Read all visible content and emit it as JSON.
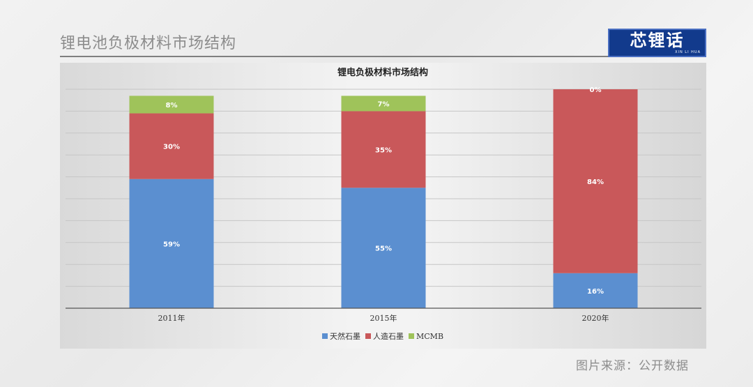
{
  "slide": {
    "title": "锂电池负极材料市场结构",
    "logo_text": "芯锂话",
    "logo_sub": "XIN LI HUA",
    "source": "图片来源：公开数据"
  },
  "colors": {
    "series": [
      "#5b8fd0",
      "#c9585a",
      "#9fc35a"
    ],
    "logo_bg": "#123a8c"
  },
  "chart_data": {
    "type": "bar",
    "stacked": true,
    "title": "锂电负极材料市场结构",
    "categories": [
      "2011年",
      "2015年",
      "2020年"
    ],
    "series": [
      {
        "name": "天然石墨",
        "values": [
          59,
          55,
          16
        ],
        "labels": [
          "59%",
          "55%",
          "16%"
        ]
      },
      {
        "name": "人造石墨",
        "values": [
          30,
          35,
          84
        ],
        "labels": [
          "30%",
          "35%",
          "84%"
        ]
      },
      {
        "name": "MCMB",
        "values": [
          8,
          7,
          0
        ],
        "labels": [
          "8%",
          "7%",
          "0%"
        ]
      }
    ],
    "ylim": [
      0,
      100
    ],
    "grid": true,
    "legend": "bottom"
  }
}
